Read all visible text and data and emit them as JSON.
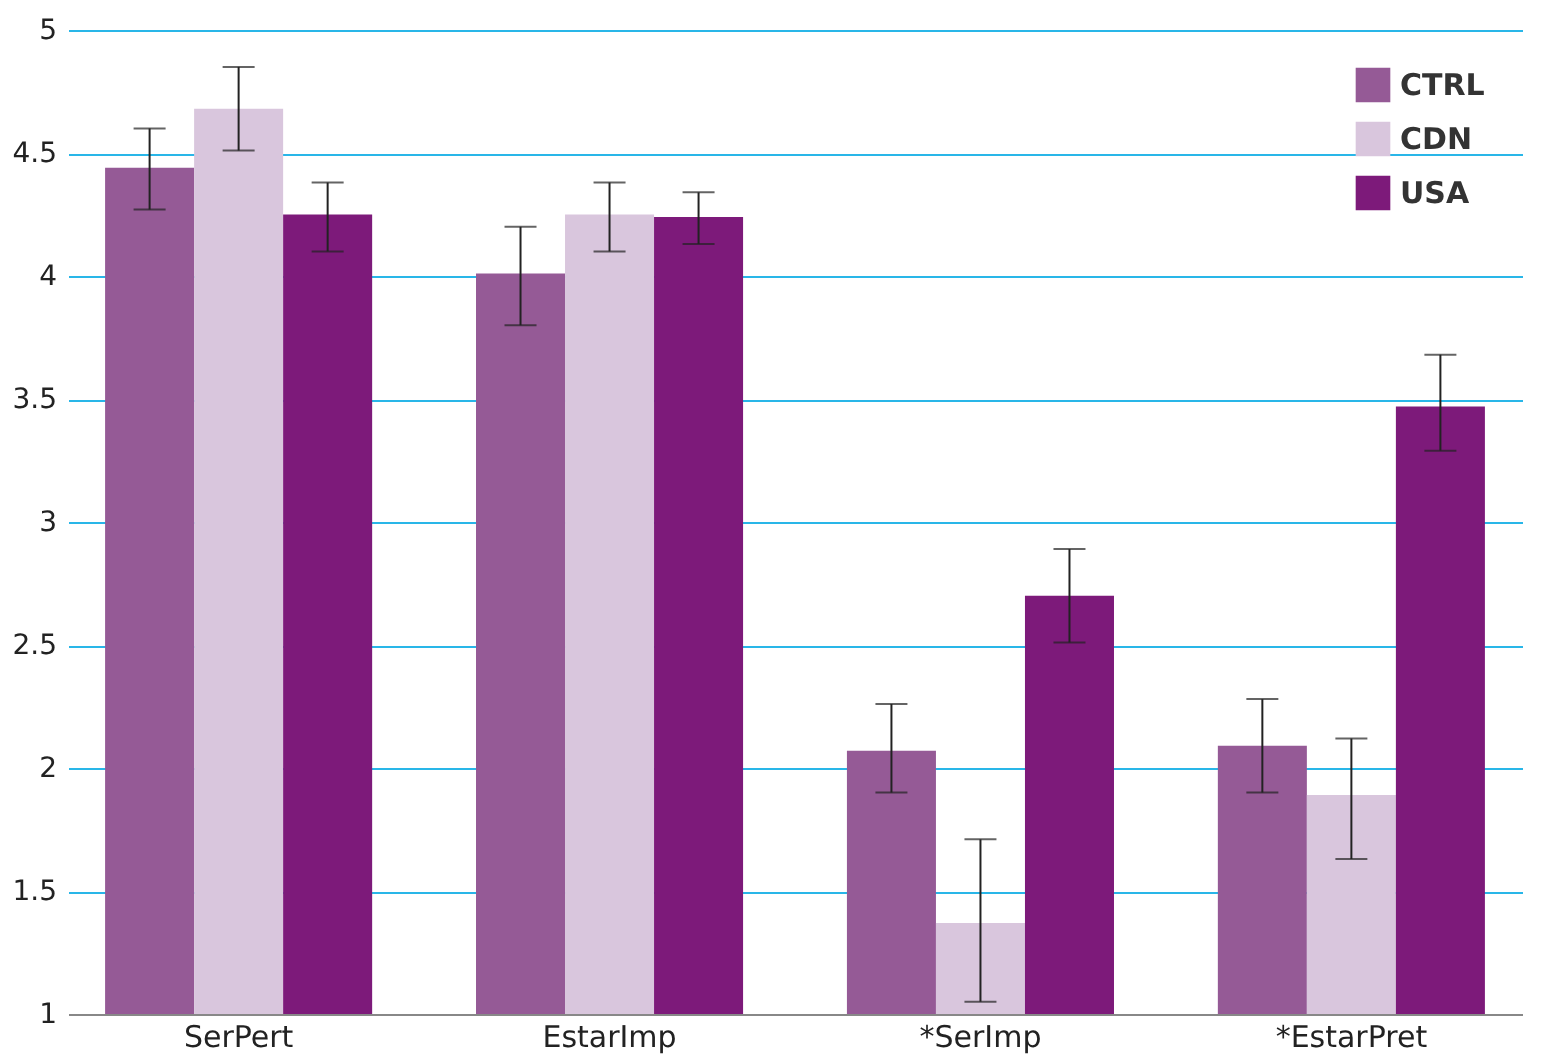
{
  "chart_data": {
    "type": "bar",
    "categories": [
      "SerPert",
      "EstarImp",
      "*SerImp",
      "*EstarPret"
    ],
    "series": [
      {
        "name": "CTRL",
        "color": "#955a96",
        "values": [
          4.44,
          4.01,
          2.07,
          2.09
        ],
        "errors": [
          [
            4.27,
            4.6
          ],
          [
            3.8,
            4.2
          ],
          [
            1.9,
            2.26
          ],
          [
            1.9,
            2.28
          ]
        ]
      },
      {
        "name": "CDN",
        "color": "#d9c6dd",
        "values": [
          4.68,
          4.25,
          1.37,
          1.89
        ],
        "errors": [
          [
            4.51,
            4.85
          ],
          [
            4.1,
            4.38
          ],
          [
            1.05,
            1.71
          ],
          [
            1.63,
            2.12
          ]
        ]
      },
      {
        "name": "USA",
        "color": "#7d1a7a",
        "values": [
          4.25,
          4.24,
          2.7,
          3.47
        ],
        "errors": [
          [
            4.1,
            4.38
          ],
          [
            4.13,
            4.34
          ],
          [
            2.51,
            2.89
          ],
          [
            3.29,
            3.68
          ]
        ]
      }
    ],
    "ylim": [
      1,
      5
    ],
    "yticks": [
      1,
      1.5,
      2,
      2.5,
      3,
      3.5,
      4,
      4.5,
      5
    ],
    "grid": "y",
    "legend": "top right"
  }
}
